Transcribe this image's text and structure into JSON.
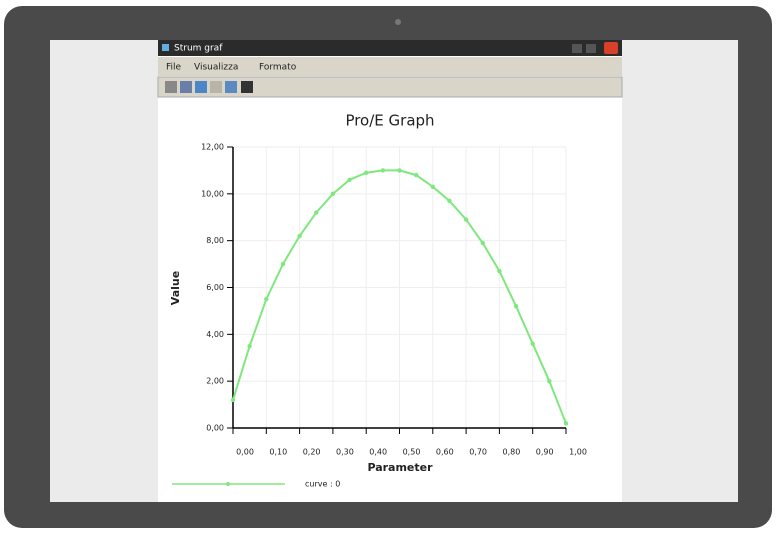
{
  "window": {
    "title": "Strum graf",
    "menu": [
      "File",
      "Visualizza",
      "Formato"
    ]
  },
  "chart_data": {
    "type": "line",
    "title": "Pro/E Graph",
    "x_label": "Parameter",
    "y_label": "Value",
    "x": [
      0,
      0.05,
      0.1,
      0.15,
      0.2,
      0.25,
      0.3,
      0.35,
      0.4,
      0.45,
      0.5,
      0.55,
      0.6,
      0.65,
      0.7,
      0.75,
      0.8,
      0.85,
      0.9,
      0.95,
      1
    ],
    "series": [
      {
        "name": "curve : 0",
        "color": "#7ee87e",
        "values": [
          1.2,
          3.5,
          5.5,
          7.0,
          8.2,
          9.2,
          10.0,
          10.6,
          10.9,
          11.0,
          11.0,
          10.8,
          10.3,
          9.7,
          8.9,
          7.9,
          6.7,
          5.2,
          3.6,
          2.0,
          0.2
        ]
      }
    ],
    "xlim": [
      0,
      1
    ],
    "ylim": [
      0,
      12
    ],
    "xticks": [
      {
        "value": 0,
        "label": "0,00"
      },
      {
        "value": 0.1,
        "label": "0,10"
      },
      {
        "value": 0.2,
        "label": "0,20"
      },
      {
        "value": 0.3,
        "label": "0,30"
      },
      {
        "value": 0.4,
        "label": "0,40"
      },
      {
        "value": 0.5,
        "label": "0,50"
      },
      {
        "value": 0.6,
        "label": "0,60"
      },
      {
        "value": 0.7,
        "label": "0,70"
      },
      {
        "value": 0.8,
        "label": "0,80"
      },
      {
        "value": 0.9,
        "label": "0,90"
      },
      {
        "value": 1,
        "label": "1,00"
      }
    ],
    "yticks": [
      {
        "value": 0,
        "label": "0,00"
      },
      {
        "value": 2,
        "label": "2,00"
      },
      {
        "value": 4,
        "label": "4,00"
      },
      {
        "value": 6,
        "label": "6,00"
      },
      {
        "value": 8,
        "label": "8,00"
      },
      {
        "value": 10,
        "label": "10,00"
      },
      {
        "value": 12,
        "label": "12,00"
      }
    ],
    "grid": true,
    "legend": "bottom-left"
  }
}
